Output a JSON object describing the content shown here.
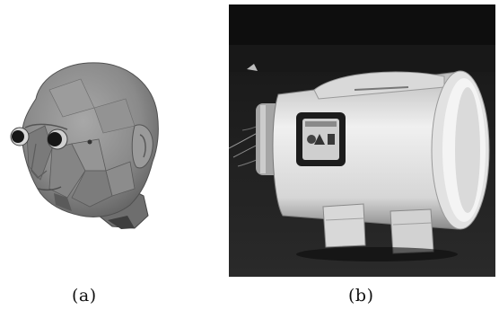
{
  "figure": {
    "panels": [
      {
        "caption": "(a)",
        "subject": "3d-head-surface-model",
        "colors": {
          "skin": "#8e8e8e",
          "shadow": "#4a4a4a",
          "eye": "#161616"
        }
      },
      {
        "caption": "(b)",
        "subject": "cylindrical-scanner-device-photo",
        "colors": {
          "background": "#111111",
          "cylinder": "#e6e6e6",
          "panel": "#1c1c1c",
          "stand": "#d8d8d8"
        }
      }
    ]
  }
}
